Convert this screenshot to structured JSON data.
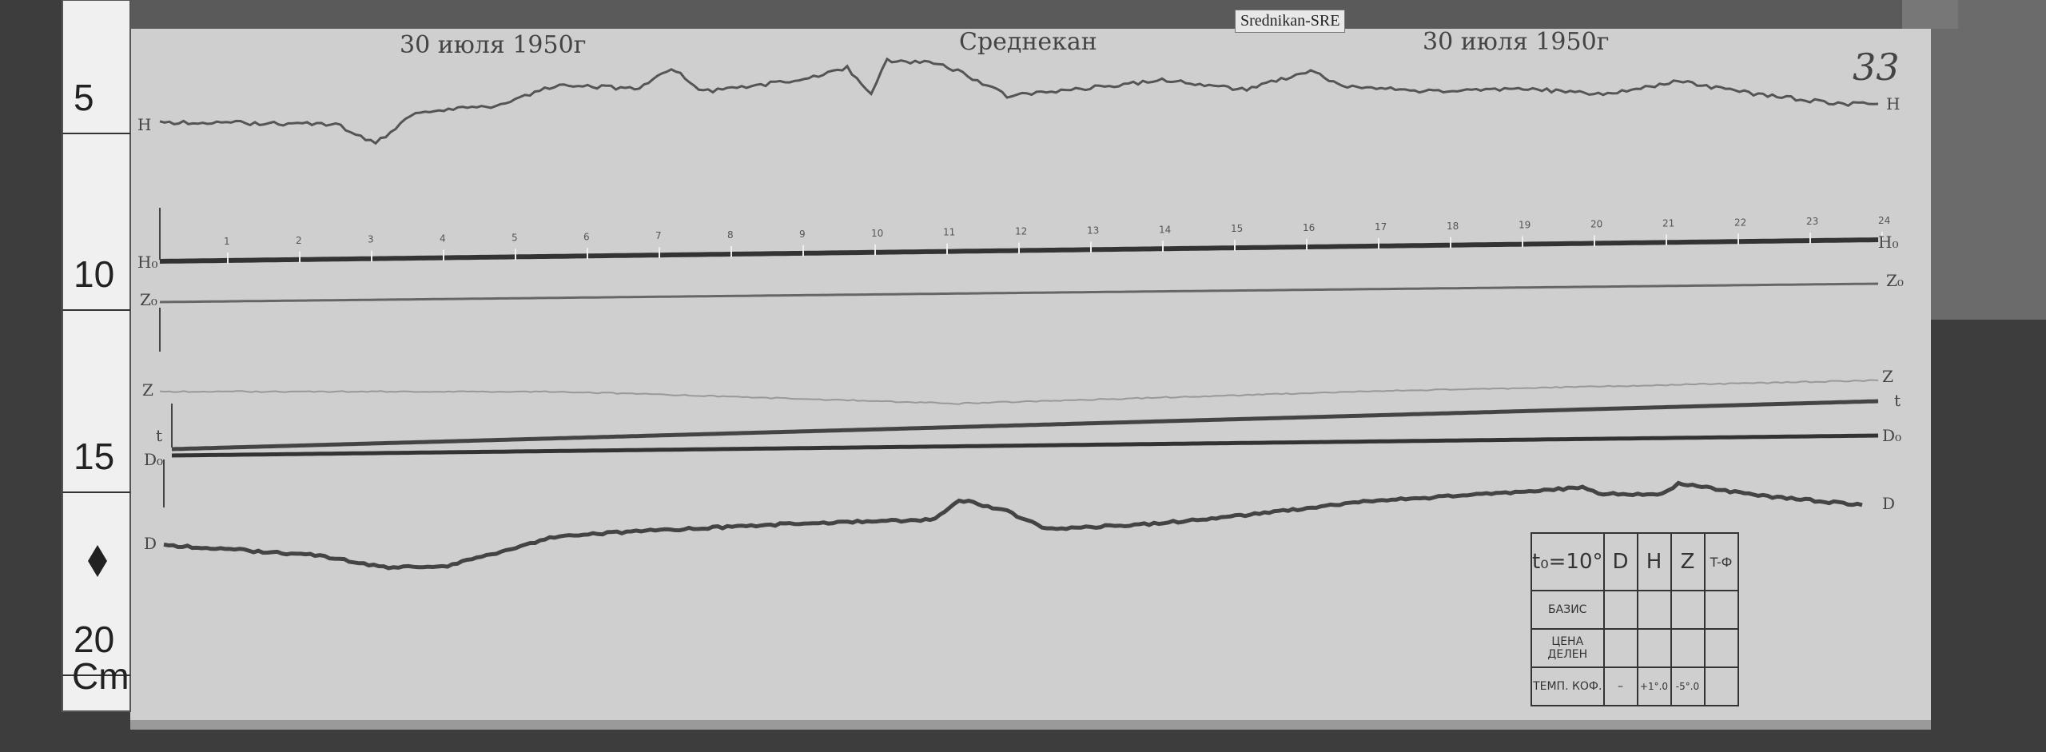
{
  "station_label": "Srednikan-SRE",
  "record": {
    "date_left": "30 июля 1950г",
    "station": "Среднекан",
    "date_right": "30 июля 1950г",
    "sheet_number": "33"
  },
  "ruler": {
    "marks": [
      "5",
      "10",
      "15",
      "20"
    ],
    "unit": "Cm"
  },
  "hour_ticks": [
    "1",
    "2",
    "3",
    "4",
    "5",
    "6",
    "7",
    "8",
    "9",
    "10",
    "11",
    "12",
    "13",
    "14",
    "15",
    "16",
    "17",
    "18",
    "19",
    "20",
    "21",
    "22",
    "23",
    "24"
  ],
  "trace_labels": {
    "H": "H",
    "H0": "H₀",
    "Z0": "Z₀",
    "Z": "Z",
    "t": "t",
    "D0": "D₀",
    "D": "D"
  },
  "table": {
    "header": [
      "t₀=10°",
      "D",
      "H",
      "Z",
      "T-Ф"
    ],
    "rows": [
      {
        "label": "БАЗИС",
        "cells": [
          "",
          "",
          "",
          ""
        ]
      },
      {
        "label": "ЦЕНА ДЕЛЕН",
        "cells": [
          "",
          "",
          "",
          ""
        ]
      },
      {
        "label": "ТЕМП. КОФ.",
        "cells": [
          "–",
          "+1°.0",
          "-5°.0",
          ""
        ]
      }
    ]
  }
}
